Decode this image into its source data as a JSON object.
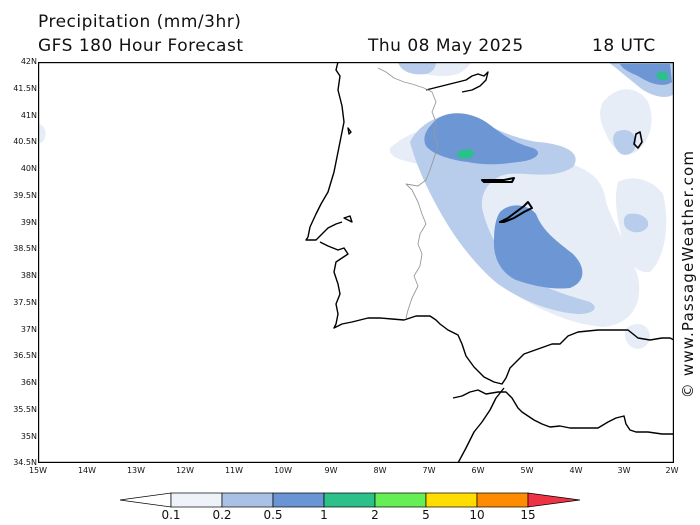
{
  "header": {
    "title": "Precipitation (mm/3hr)",
    "subtitle": "GFS 180 Hour Forecast",
    "date": "Thu 08 May 2025",
    "time": "18 UTC"
  },
  "credit": "© www.PassageWeather.com",
  "axes": {
    "lat_labels": [
      "42N",
      "41.5N",
      "41N",
      "40.5N",
      "40N",
      "39.5N",
      "39N",
      "38.5N",
      "38N",
      "37.5N",
      "37N",
      "36.5N",
      "36N",
      "35.5N",
      "35N",
      "34.5N"
    ],
    "lon_labels": [
      "15W",
      "14W",
      "13W",
      "12W",
      "11W",
      "10W",
      "9W",
      "8W",
      "7W",
      "6W",
      "5W",
      "4W",
      "3W",
      "2W"
    ]
  },
  "legend": {
    "ticks": [
      "0.1",
      "0.2",
      "0.5",
      "1",
      "2",
      "5",
      "10",
      "15"
    ],
    "colors": [
      "#eef2f9",
      "#dbe5f3",
      "#a9c1e4",
      "#6a95d4",
      "#2cc08a",
      "#66ee55",
      "#ffdd00",
      "#ff8c00",
      "#ee3344"
    ]
  }
}
